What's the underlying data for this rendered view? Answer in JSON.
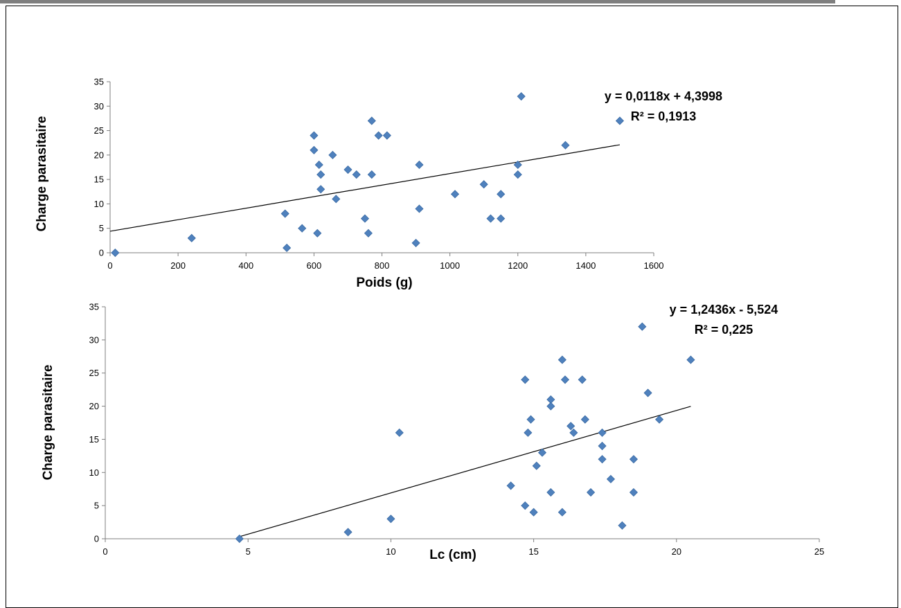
{
  "colors": {
    "marker": "#4f81bd",
    "marker_edge": "#3a6aa3",
    "trend": "#000000",
    "frame": "#000000"
  },
  "chart_data": [
    {
      "type": "scatter",
      "xlabel": "Poids (g)",
      "ylabel": "Charge parasitaire",
      "xlim": [
        0,
        1600
      ],
      "ylim": [
        0,
        35
      ],
      "xticks": [
        0,
        200,
        400,
        600,
        800,
        1000,
        1200,
        1400,
        1600
      ],
      "yticks": [
        0,
        5,
        10,
        15,
        20,
        25,
        30,
        35
      ],
      "trendline": {
        "slope": 0.0118,
        "intercept": 4.3998,
        "x_range": [
          0,
          1500
        ]
      },
      "equation": "y = 0,0118x + 4,3998",
      "r_squared": "R² = 0,1913",
      "points": [
        [
          15,
          0
        ],
        [
          240,
          3
        ],
        [
          515,
          8
        ],
        [
          520,
          1
        ],
        [
          565,
          5
        ],
        [
          600,
          24
        ],
        [
          600,
          21
        ],
        [
          610,
          4
        ],
        [
          615,
          18
        ],
        [
          620,
          16
        ],
        [
          620,
          13
        ],
        [
          655,
          20
        ],
        [
          665,
          11
        ],
        [
          700,
          17
        ],
        [
          725,
          16
        ],
        [
          750,
          7
        ],
        [
          760,
          4
        ],
        [
          770,
          27
        ],
        [
          770,
          16
        ],
        [
          790,
          24
        ],
        [
          815,
          24
        ],
        [
          900,
          2
        ],
        [
          910,
          18
        ],
        [
          910,
          9
        ],
        [
          1015,
          12
        ],
        [
          1100,
          14
        ],
        [
          1120,
          7
        ],
        [
          1150,
          12
        ],
        [
          1150,
          7
        ],
        [
          1200,
          18
        ],
        [
          1200,
          16
        ],
        [
          1210,
          32
        ],
        [
          1340,
          22
        ],
        [
          1500,
          27
        ]
      ]
    },
    {
      "type": "scatter",
      "xlabel": "Lc (cm)",
      "ylabel": "Charge parasitaire",
      "xlim": [
        0,
        25
      ],
      "ylim": [
        0,
        35
      ],
      "xticks": [
        0,
        5,
        10,
        15,
        20,
        25
      ],
      "yticks": [
        0,
        5,
        10,
        15,
        20,
        25,
        30,
        35
      ],
      "trendline": {
        "slope": 1.2436,
        "intercept": -5.524,
        "x_range": [
          4.7,
          20.5
        ]
      },
      "equation": "y = 1,2436x - 5,524",
      "r_squared": "R² = 0,225",
      "points": [
        [
          4.7,
          0
        ],
        [
          8.5,
          1
        ],
        [
          10.0,
          3
        ],
        [
          10.3,
          16
        ],
        [
          14.2,
          8
        ],
        [
          14.7,
          24
        ],
        [
          14.7,
          5
        ],
        [
          14.8,
          16
        ],
        [
          14.9,
          18
        ],
        [
          15.0,
          4
        ],
        [
          15.1,
          11
        ],
        [
          15.3,
          13
        ],
        [
          15.6,
          21
        ],
        [
          15.6,
          20
        ],
        [
          15.6,
          7
        ],
        [
          16.0,
          27
        ],
        [
          16.0,
          4
        ],
        [
          16.1,
          24
        ],
        [
          16.3,
          17
        ],
        [
          16.4,
          16
        ],
        [
          16.7,
          24
        ],
        [
          16.8,
          18
        ],
        [
          17.0,
          7
        ],
        [
          17.4,
          16
        ],
        [
          17.4,
          14
        ],
        [
          17.4,
          12
        ],
        [
          17.7,
          9
        ],
        [
          18.1,
          2
        ],
        [
          18.5,
          12
        ],
        [
          18.5,
          7
        ],
        [
          18.8,
          32
        ],
        [
          19.0,
          22
        ],
        [
          19.4,
          18
        ],
        [
          20.5,
          27
        ]
      ]
    }
  ]
}
